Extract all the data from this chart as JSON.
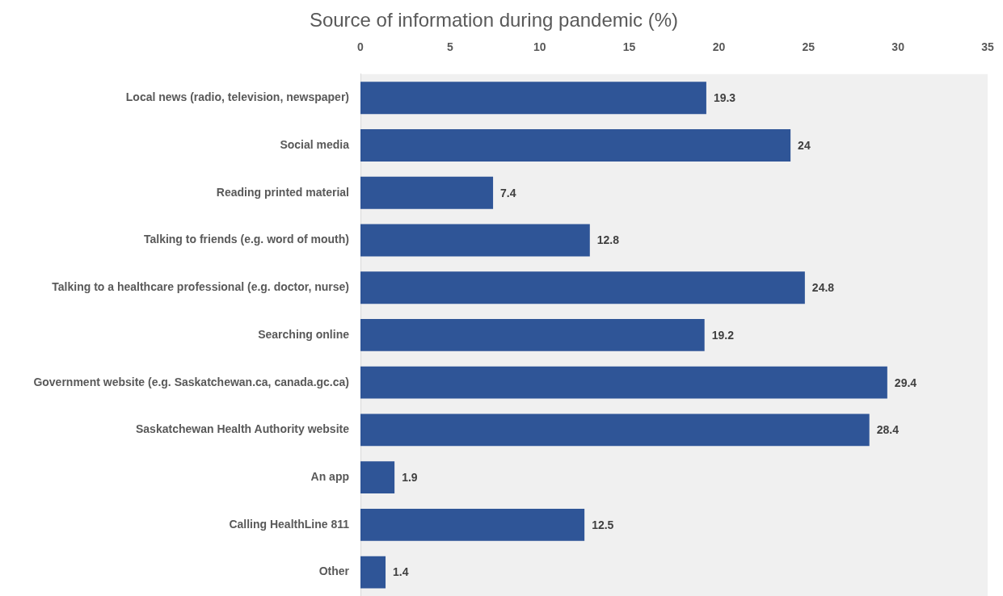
{
  "chart_data": {
    "type": "bar",
    "orientation": "horizontal",
    "title": "Source of information during pandemic (%)",
    "categories": [
      "Local news (radio, television, newspaper)",
      "Social media",
      "Reading printed material",
      "Talking to friends (e.g. word of mouth)",
      "Talking to a healthcare professional (e.g. doctor, nurse)",
      "Searching online",
      "Government website (e.g. Saskatchewan.ca, canada.gc.ca)",
      "Saskatchewan Health Authority website",
      "An app",
      "Calling HealthLine 811",
      "Other"
    ],
    "values": [
      19.3,
      24,
      7.4,
      12.8,
      24.8,
      19.2,
      29.4,
      28.4,
      1.9,
      12.5,
      1.4
    ],
    "color": "#2f5597",
    "xlim": [
      0,
      35
    ],
    "xticks": [
      0,
      5,
      10,
      15,
      20,
      25,
      30,
      35
    ],
    "data_labels": true
  }
}
